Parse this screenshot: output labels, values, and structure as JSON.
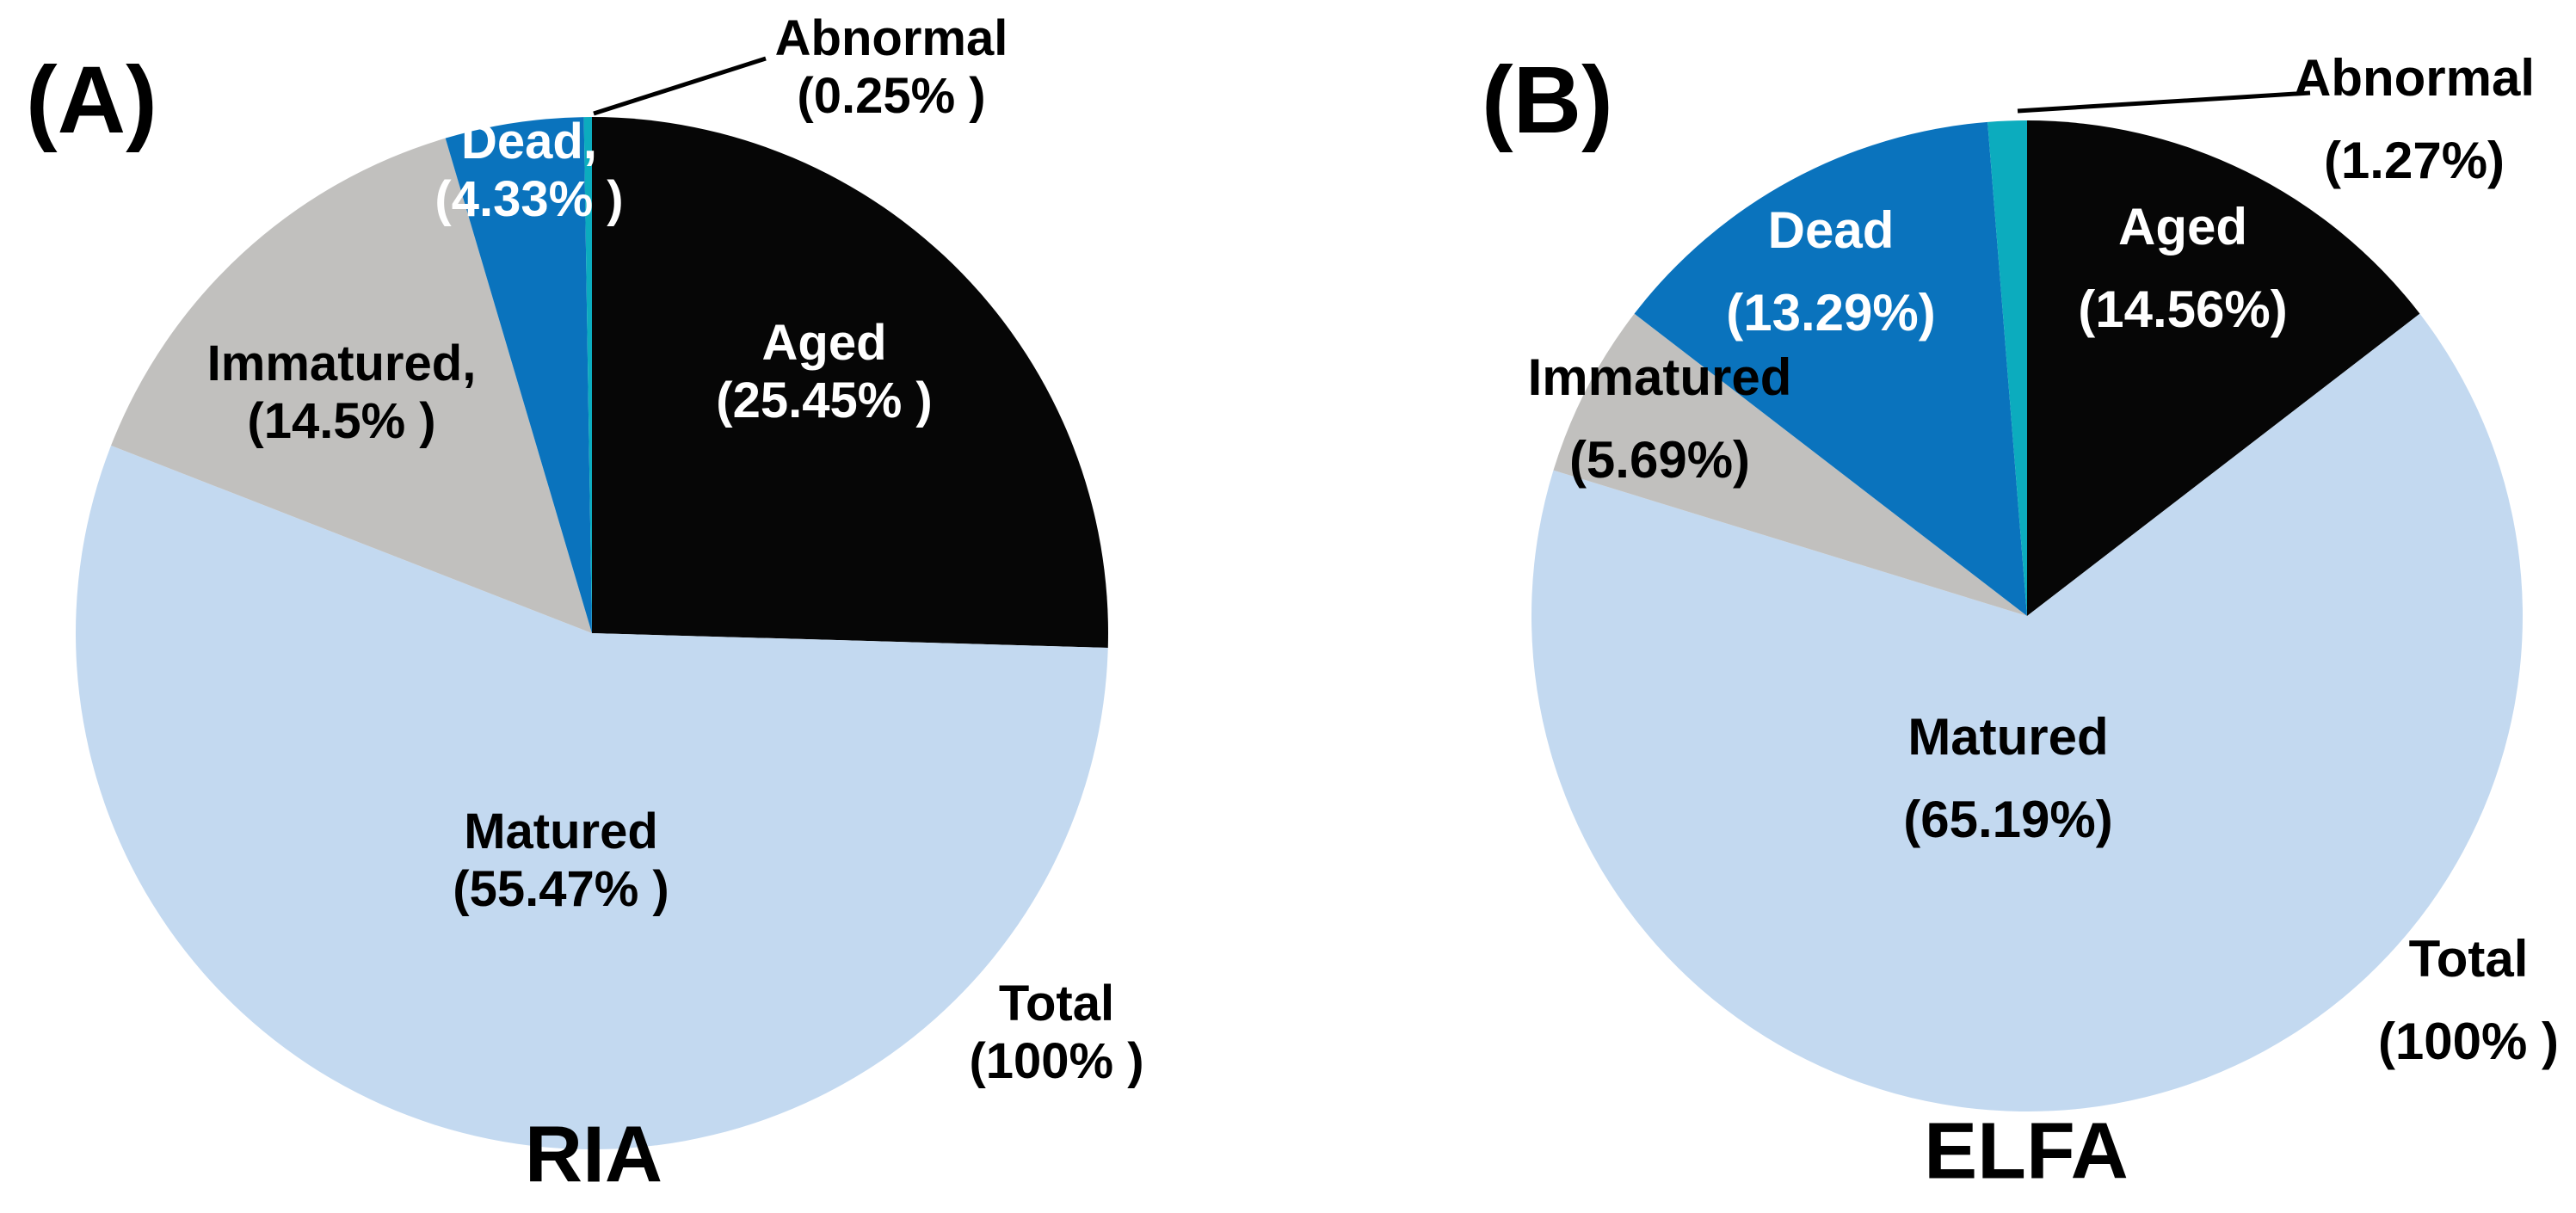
{
  "figure": {
    "background": "#ffffff",
    "text_color": "#000000",
    "leader_line_color": "#000000"
  },
  "chart_data": [
    {
      "type": "pie",
      "panel_label": "(A)",
      "title": "RIA",
      "unit": "%",
      "legend": "none",
      "labels_on_slices": true,
      "categories": [
        "Aged",
        "Matured",
        "Immatured",
        "Dead",
        "Abnormal"
      ],
      "values": [
        25.45,
        55.47,
        14.5,
        4.33,
        0.25
      ],
      "colors": [
        "#060606",
        "#c3d9f0",
        "#c1c0be",
        "#0a73bd",
        "#0cacbe"
      ],
      "slice_labels": [
        {
          "lines": [
            "Aged",
            "(25.45% )"
          ],
          "text_color": "#ffffff"
        },
        {
          "lines": [
            "Matured",
            "(55.47% )"
          ],
          "text_color": "#000000"
        },
        {
          "lines": [
            "Immatured,",
            "(14.5% )"
          ],
          "text_color": "#000000"
        },
        {
          "lines": [
            "Dead,",
            "(4.33% )"
          ],
          "text_color": "#ffffff"
        },
        {
          "lines": [
            "Abnormal",
            "(0.25% )"
          ],
          "text_color": "#000000"
        }
      ],
      "total_label": {
        "lines": [
          "Total",
          "(100% )"
        ]
      }
    },
    {
      "type": "pie",
      "panel_label": "(B)",
      "title": "ELFA",
      "unit": "%",
      "legend": "none",
      "labels_on_slices": true,
      "categories": [
        "Aged",
        "Matured",
        "Immatured",
        "Dead",
        "Abnormal"
      ],
      "values": [
        14.56,
        65.19,
        5.69,
        13.29,
        1.27
      ],
      "colors": [
        "#060606",
        "#c3d9f0",
        "#c1c0be",
        "#0a73bd",
        "#0cacbe"
      ],
      "slice_labels": [
        {
          "lines": [
            "Aged",
            "(14.56%)"
          ],
          "text_color": "#ffffff"
        },
        {
          "lines": [
            "Matured",
            "(65.19%)"
          ],
          "text_color": "#000000"
        },
        {
          "lines": [
            "Immatured",
            "(5.69%)"
          ],
          "text_color": "#000000"
        },
        {
          "lines": [
            "Dead",
            "(13.29%)"
          ],
          "text_color": "#ffffff"
        },
        {
          "lines": [
            "Abnormal",
            "(1.27%)"
          ],
          "text_color": "#000000"
        }
      ],
      "total_label": {
        "lines": [
          "Total",
          "(100% )"
        ]
      }
    }
  ]
}
